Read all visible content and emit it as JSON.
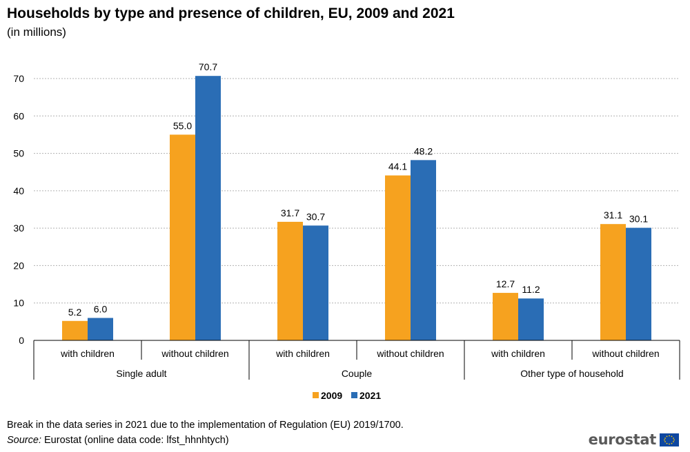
{
  "header": {
    "title": "Households by type and presence of children, EU, 2009 and 2021",
    "subtitle": "(in millions)"
  },
  "chart_data": {
    "type": "bar",
    "categories": [
      "with children",
      "without children",
      "with children",
      "without children",
      "with children",
      "without children"
    ],
    "groups": [
      {
        "label": "Single adult",
        "span": 2
      },
      {
        "label": "Couple",
        "span": 2
      },
      {
        "label": "Other type of household",
        "span": 2
      }
    ],
    "series": [
      {
        "name": "2009",
        "color": "#f6a21f",
        "values": [
          5.2,
          55.0,
          31.7,
          44.1,
          12.7,
          31.1
        ]
      },
      {
        "name": "2021",
        "color": "#2a6db5",
        "values": [
          6.0,
          70.7,
          30.7,
          48.2,
          11.2,
          30.1
        ]
      }
    ],
    "ylim": [
      0,
      70
    ],
    "yticks": [
      0,
      10,
      20,
      30,
      40,
      50,
      60,
      70
    ],
    "grid": true,
    "legend": "bottom-center",
    "data_labels": true,
    "value_format": "one-decimal"
  },
  "footer": {
    "note": "Break in the data series in 2021 due to the implementation of Regulation (EU) 2019/1700.",
    "source_label": "Source:",
    "source_text": " Eurostat (online data code: lfst_hhnhtych)"
  },
  "logo": {
    "text": "eurostat",
    "icon": "eu-flag-icon"
  }
}
